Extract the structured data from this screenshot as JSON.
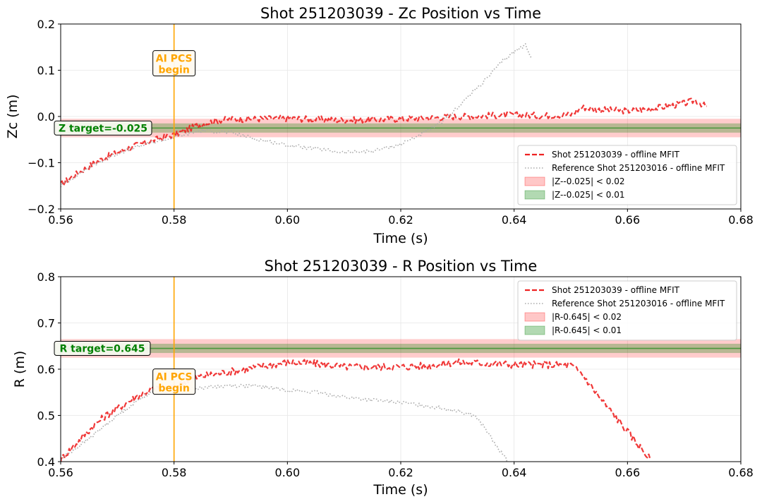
{
  "chart_data": [
    {
      "type": "line",
      "title": "Shot 251203039 - Zc Position vs Time",
      "xlabel": "Time (s)",
      "ylabel": "Zc (m)",
      "xlim": [
        0.56,
        0.68
      ],
      "ylim": [
        -0.2,
        0.2
      ],
      "xticks": [
        0.56,
        0.58,
        0.6,
        0.62,
        0.64,
        0.66,
        0.68
      ],
      "xtick_labels": [
        "0.56",
        "0.58",
        "0.60",
        "0.62",
        "0.64",
        "0.66",
        "0.68"
      ],
      "yticks": [
        -0.2,
        -0.1,
        0.0,
        0.1,
        0.2
      ],
      "ytick_labels": [
        "−0.2",
        "−0.1",
        "0.0",
        "0.1",
        "0.2"
      ],
      "grid": true,
      "target": {
        "value": -0.025,
        "label": "Z target=-0.025",
        "color": "#008000"
      },
      "bands": [
        {
          "half_width": 0.02,
          "label": "|Z--0.025| < 0.02",
          "color": "#ff0000"
        },
        {
          "half_width": 0.01,
          "label": "|Z--0.025| < 0.01",
          "color": "#008000"
        }
      ],
      "vline": {
        "x": 0.58,
        "label_line1": "AI PCS",
        "label_line2": "begin",
        "label_y": 0.115,
        "color": "#ffa500"
      },
      "legend_position": "lower-right",
      "series": [
        {
          "name": "Shot 251203039 - offline MFIT",
          "style": "dashed",
          "color": "#ee2222",
          "x": [
            0.56,
            0.562,
            0.564,
            0.566,
            0.568,
            0.57,
            0.572,
            0.574,
            0.576,
            0.578,
            0.58,
            0.582,
            0.584,
            0.586,
            0.588,
            0.59,
            0.595,
            0.6,
            0.605,
            0.61,
            0.615,
            0.62,
            0.625,
            0.63,
            0.635,
            0.64,
            0.645,
            0.65,
            0.652,
            0.655,
            0.66,
            0.665,
            0.67,
            0.672,
            0.674
          ],
          "y": [
            -0.148,
            -0.13,
            -0.115,
            -0.1,
            -0.088,
            -0.078,
            -0.068,
            -0.06,
            -0.053,
            -0.046,
            -0.04,
            -0.03,
            -0.02,
            -0.013,
            -0.008,
            -0.006,
            -0.005,
            -0.004,
            -0.006,
            -0.008,
            -0.007,
            -0.005,
            -0.003,
            0.0,
            0.002,
            0.003,
            0.002,
            0.004,
            0.02,
            0.015,
            0.012,
            0.018,
            0.028,
            0.035,
            0.02
          ],
          "noise": 0.007
        },
        {
          "name": "Reference Shot 251203016 - offline MFIT",
          "style": "dotted",
          "color": "#aaaaaa",
          "x": [
            0.56,
            0.565,
            0.57,
            0.575,
            0.58,
            0.585,
            0.59,
            0.595,
            0.6,
            0.605,
            0.61,
            0.615,
            0.62,
            0.625,
            0.628,
            0.63,
            0.635,
            0.638,
            0.64,
            0.642,
            0.643
          ],
          "y": [
            -0.15,
            -0.11,
            -0.08,
            -0.06,
            -0.045,
            -0.03,
            -0.035,
            -0.05,
            -0.062,
            -0.07,
            -0.078,
            -0.075,
            -0.06,
            -0.03,
            -0.005,
            0.02,
            0.08,
            0.12,
            0.14,
            0.155,
            0.13
          ],
          "noise": 0.004
        }
      ]
    },
    {
      "type": "line",
      "title": "Shot 251203039 - R Position vs Time",
      "xlabel": "Time (s)",
      "ylabel": "R (m)",
      "xlim": [
        0.56,
        0.68
      ],
      "ylim": [
        0.4,
        0.8
      ],
      "xticks": [
        0.56,
        0.58,
        0.6,
        0.62,
        0.64,
        0.66,
        0.68
      ],
      "xtick_labels": [
        "0.56",
        "0.58",
        "0.60",
        "0.62",
        "0.64",
        "0.66",
        "0.68"
      ],
      "yticks": [
        0.4,
        0.5,
        0.6,
        0.7,
        0.8
      ],
      "ytick_labels": [
        "0.4",
        "0.5",
        "0.6",
        "0.7",
        "0.8"
      ],
      "grid": true,
      "target": {
        "value": 0.645,
        "label": "R target=0.645",
        "color": "#008000"
      },
      "bands": [
        {
          "half_width": 0.02,
          "label": "|R-0.645| < 0.02",
          "color": "#ff0000"
        },
        {
          "half_width": 0.01,
          "label": "|R-0.645| < 0.01",
          "color": "#008000"
        }
      ],
      "vline": {
        "x": 0.58,
        "label_line1": "AI PCS",
        "label_line2": "begin",
        "label_y": 0.573,
        "color": "#ffa500"
      },
      "legend_position": "upper-right",
      "series": [
        {
          "name": "Shot 251203039 - offline MFIT",
          "style": "dashed",
          "color": "#ee2222",
          "x": [
            0.56,
            0.562,
            0.564,
            0.566,
            0.568,
            0.57,
            0.572,
            0.574,
            0.576,
            0.578,
            0.58,
            0.582,
            0.585,
            0.59,
            0.595,
            0.6,
            0.605,
            0.61,
            0.615,
            0.62,
            0.625,
            0.63,
            0.635,
            0.64,
            0.645,
            0.65,
            0.652,
            0.655,
            0.658,
            0.66,
            0.662,
            0.664
          ],
          "y": [
            0.405,
            0.43,
            0.455,
            0.48,
            0.5,
            0.515,
            0.53,
            0.545,
            0.555,
            0.56,
            0.56,
            0.575,
            0.585,
            0.595,
            0.605,
            0.615,
            0.612,
            0.605,
            0.605,
            0.605,
            0.608,
            0.615,
            0.613,
            0.61,
            0.61,
            0.608,
            0.59,
            0.54,
            0.495,
            0.465,
            0.435,
            0.405
          ],
          "noise": 0.008
        },
        {
          "name": "Reference Shot 251203016 - offline MFIT",
          "style": "dotted",
          "color": "#aaaaaa",
          "x": [
            0.56,
            0.565,
            0.57,
            0.575,
            0.58,
            0.585,
            0.59,
            0.595,
            0.6,
            0.605,
            0.61,
            0.615,
            0.62,
            0.625,
            0.63,
            0.633,
            0.635,
            0.637,
            0.639
          ],
          "y": [
            0.405,
            0.45,
            0.5,
            0.545,
            0.555,
            0.56,
            0.565,
            0.563,
            0.555,
            0.55,
            0.54,
            0.533,
            0.528,
            0.52,
            0.51,
            0.5,
            0.47,
            0.43,
            0.4
          ],
          "noise": 0.004
        }
      ]
    }
  ]
}
